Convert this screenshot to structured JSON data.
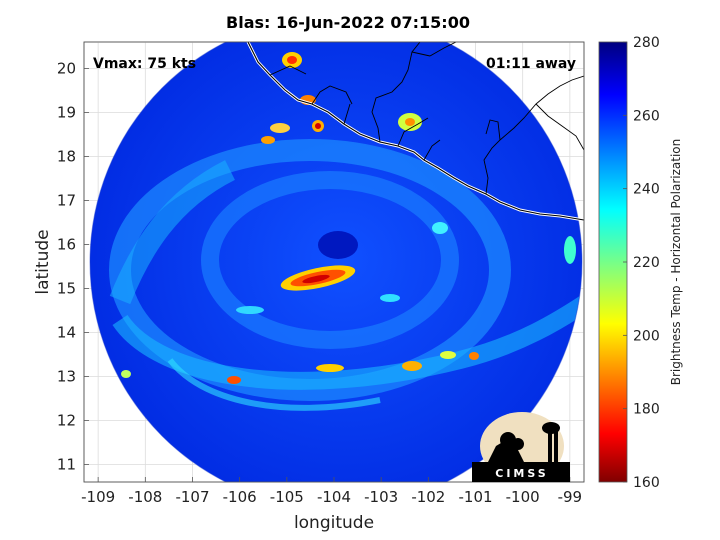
{
  "title": "Blas: 16-Jun-2022 07:15:00",
  "annotations": {
    "vmax": "Vmax: 75 kts",
    "time_away": "01:11 away"
  },
  "axes": {
    "xlabel": "longitude",
    "ylabel": "latitude",
    "x_ticks": [
      "-109",
      "-108",
      "-107",
      "-106",
      "-105",
      "-104",
      "-103",
      "-102",
      "-101",
      "-100",
      "-99"
    ],
    "y_ticks": [
      "20",
      "19",
      "18",
      "17",
      "16",
      "15",
      "14",
      "13",
      "12",
      "11"
    ],
    "xlim": [
      -109.3,
      -98.7
    ],
    "ylim": [
      10.6,
      20.6
    ],
    "grid": true
  },
  "colorbar": {
    "label": "Brightness Temp - Horizontal Polarization",
    "ticks": [
      "280",
      "260",
      "240",
      "220",
      "200",
      "180",
      "160"
    ],
    "range": [
      160,
      280
    ],
    "colormap": "jet",
    "colors": {
      "low": "#800000",
      "red": "#ff0000",
      "yellow": "#ffff00",
      "cyan": "#00ffff",
      "blue": "#0000ff",
      "high": "#000080"
    }
  },
  "logo": {
    "text": "CIMSS"
  },
  "map_features": {
    "storm_center_lon": -104.2,
    "storm_center_lat": 15.7,
    "swath_boundary": "circle",
    "coastline": "Mexico Pacific coast"
  }
}
